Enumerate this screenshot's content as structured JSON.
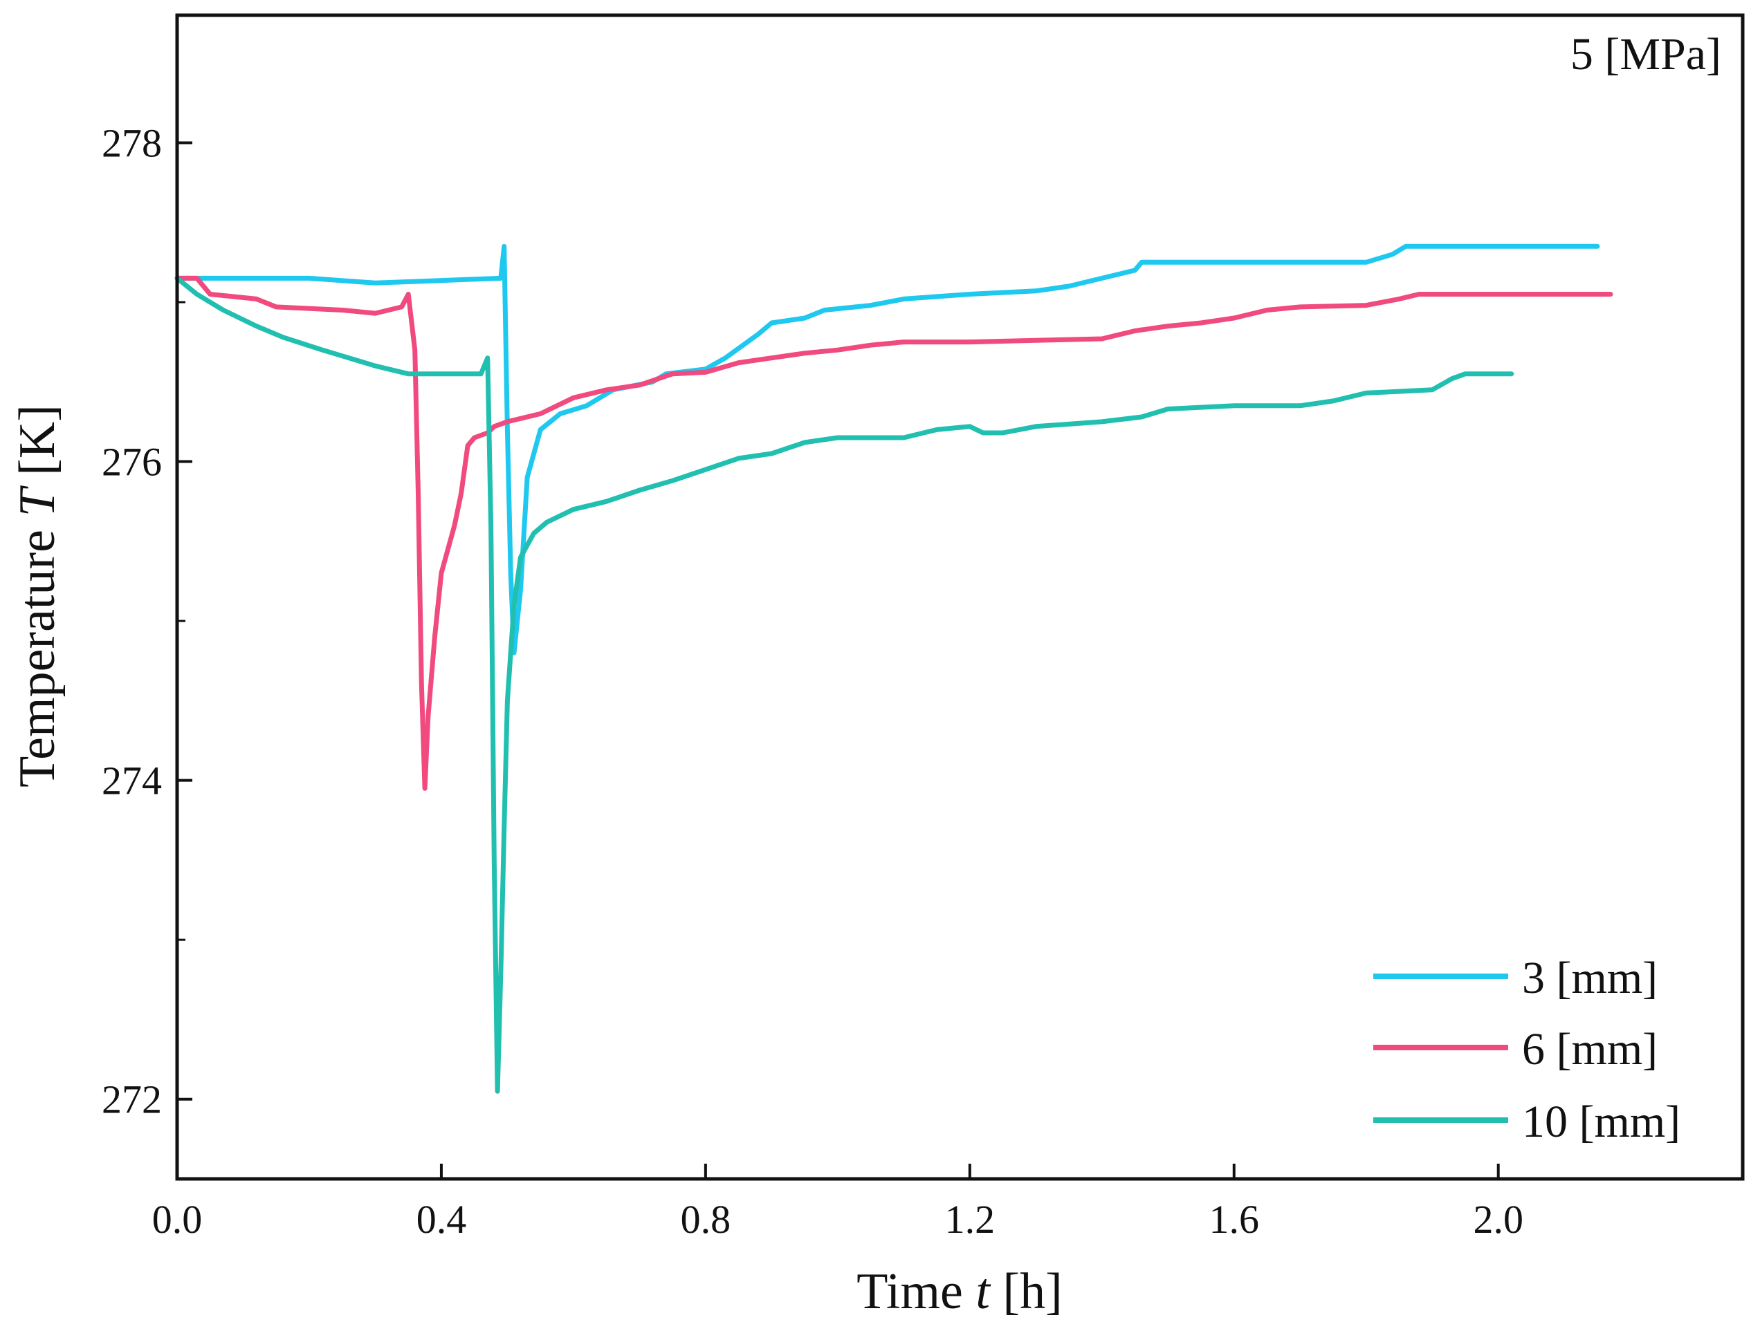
{
  "chart_data": {
    "type": "line",
    "title": "",
    "annotation": "5 [MPa]",
    "xlabel": {
      "prefix": "Time ",
      "symbol": "t",
      "suffix": " [h]"
    },
    "ylabel": {
      "prefix": "Temperature ",
      "symbol": "T",
      "suffix": " [K]"
    },
    "xlim": [
      0.0,
      2.37
    ],
    "ylim": [
      271.5,
      278.8
    ],
    "xticks": [
      0.0,
      0.4,
      0.8,
      1.2,
      1.6,
      2.0
    ],
    "xtick_labels": [
      "0.0",
      "0.4",
      "0.8",
      "1.2",
      "1.6",
      "2.0"
    ],
    "yticks": [
      272,
      274,
      276,
      278
    ],
    "ytick_labels": [
      "272",
      "274",
      "276",
      "278"
    ],
    "yminor": [
      273,
      275,
      277
    ],
    "legend_position": "bottom-right",
    "series": [
      {
        "name": "3 [mm]",
        "color": "#1ec8ee",
        "points": [
          [
            0.0,
            277.15
          ],
          [
            0.1,
            277.15
          ],
          [
            0.2,
            277.15
          ],
          [
            0.3,
            277.12
          ],
          [
            0.49,
            277.15
          ],
          [
            0.495,
            277.35
          ],
          [
            0.5,
            276.2
          ],
          [
            0.505,
            275.3
          ],
          [
            0.51,
            274.8
          ],
          [
            0.52,
            275.2
          ],
          [
            0.53,
            275.9
          ],
          [
            0.55,
            276.2
          ],
          [
            0.58,
            276.3
          ],
          [
            0.62,
            276.35
          ],
          [
            0.66,
            276.45
          ],
          [
            0.72,
            276.5
          ],
          [
            0.74,
            276.55
          ],
          [
            0.8,
            276.58
          ],
          [
            0.83,
            276.65
          ],
          [
            0.88,
            276.8
          ],
          [
            0.9,
            276.87
          ],
          [
            0.95,
            276.9
          ],
          [
            0.98,
            276.95
          ],
          [
            1.05,
            276.98
          ],
          [
            1.1,
            277.02
          ],
          [
            1.2,
            277.05
          ],
          [
            1.3,
            277.07
          ],
          [
            1.35,
            277.1
          ],
          [
            1.4,
            277.15
          ],
          [
            1.45,
            277.2
          ],
          [
            1.46,
            277.25
          ],
          [
            1.6,
            277.25
          ],
          [
            1.7,
            277.25
          ],
          [
            1.8,
            277.25
          ],
          [
            1.84,
            277.3
          ],
          [
            1.86,
            277.35
          ],
          [
            2.0,
            277.35
          ],
          [
            2.15,
            277.35
          ]
        ]
      },
      {
        "name": "6 [mm]",
        "color": "#f04a7f",
        "points": [
          [
            0.0,
            277.15
          ],
          [
            0.03,
            277.15
          ],
          [
            0.05,
            277.05
          ],
          [
            0.12,
            277.02
          ],
          [
            0.15,
            276.97
          ],
          [
            0.25,
            276.95
          ],
          [
            0.3,
            276.93
          ],
          [
            0.34,
            276.97
          ],
          [
            0.35,
            277.05
          ],
          [
            0.36,
            276.7
          ],
          [
            0.365,
            275.8
          ],
          [
            0.37,
            274.6
          ],
          [
            0.375,
            273.95
          ],
          [
            0.38,
            274.4
          ],
          [
            0.39,
            274.9
          ],
          [
            0.4,
            275.3
          ],
          [
            0.42,
            275.6
          ],
          [
            0.43,
            275.8
          ],
          [
            0.44,
            276.1
          ],
          [
            0.45,
            276.15
          ],
          [
            0.47,
            276.18
          ],
          [
            0.48,
            276.22
          ],
          [
            0.5,
            276.25
          ],
          [
            0.55,
            276.3
          ],
          [
            0.6,
            276.4
          ],
          [
            0.65,
            276.45
          ],
          [
            0.7,
            276.48
          ],
          [
            0.75,
            276.55
          ],
          [
            0.8,
            276.56
          ],
          [
            0.85,
            276.62
          ],
          [
            0.9,
            276.65
          ],
          [
            0.95,
            276.68
          ],
          [
            1.0,
            276.7
          ],
          [
            1.05,
            276.73
          ],
          [
            1.1,
            276.75
          ],
          [
            1.2,
            276.75
          ],
          [
            1.3,
            276.76
          ],
          [
            1.4,
            276.77
          ],
          [
            1.45,
            276.82
          ],
          [
            1.5,
            276.85
          ],
          [
            1.55,
            276.87
          ],
          [
            1.6,
            276.9
          ],
          [
            1.65,
            276.95
          ],
          [
            1.7,
            276.97
          ],
          [
            1.8,
            276.98
          ],
          [
            1.85,
            277.02
          ],
          [
            1.88,
            277.05
          ],
          [
            2.0,
            277.05
          ],
          [
            2.17,
            277.05
          ]
        ]
      },
      {
        "name": "10 [mm]",
        "color": "#20bfb0",
        "points": [
          [
            0.0,
            277.15
          ],
          [
            0.03,
            277.05
          ],
          [
            0.07,
            276.95
          ],
          [
            0.12,
            276.85
          ],
          [
            0.16,
            276.78
          ],
          [
            0.22,
            276.7
          ],
          [
            0.26,
            276.65
          ],
          [
            0.3,
            276.6
          ],
          [
            0.35,
            276.55
          ],
          [
            0.4,
            276.55
          ],
          [
            0.46,
            276.55
          ],
          [
            0.47,
            276.65
          ],
          [
            0.475,
            275.6
          ],
          [
            0.48,
            273.5
          ],
          [
            0.485,
            272.05
          ],
          [
            0.49,
            272.8
          ],
          [
            0.495,
            273.7
          ],
          [
            0.5,
            274.5
          ],
          [
            0.51,
            275.1
          ],
          [
            0.52,
            275.4
          ],
          [
            0.54,
            275.55
          ],
          [
            0.56,
            275.62
          ],
          [
            0.6,
            275.7
          ],
          [
            0.65,
            275.75
          ],
          [
            0.7,
            275.82
          ],
          [
            0.75,
            275.88
          ],
          [
            0.8,
            275.95
          ],
          [
            0.85,
            276.02
          ],
          [
            0.9,
            276.05
          ],
          [
            0.95,
            276.12
          ],
          [
            1.0,
            276.15
          ],
          [
            1.1,
            276.15
          ],
          [
            1.15,
            276.2
          ],
          [
            1.2,
            276.22
          ],
          [
            1.22,
            276.18
          ],
          [
            1.25,
            276.18
          ],
          [
            1.3,
            276.22
          ],
          [
            1.4,
            276.25
          ],
          [
            1.46,
            276.28
          ],
          [
            1.5,
            276.33
          ],
          [
            1.6,
            276.35
          ],
          [
            1.7,
            276.35
          ],
          [
            1.75,
            276.38
          ],
          [
            1.8,
            276.43
          ],
          [
            1.9,
            276.45
          ],
          [
            1.93,
            276.52
          ],
          [
            1.95,
            276.55
          ],
          [
            2.02,
            276.55
          ]
        ]
      }
    ]
  }
}
